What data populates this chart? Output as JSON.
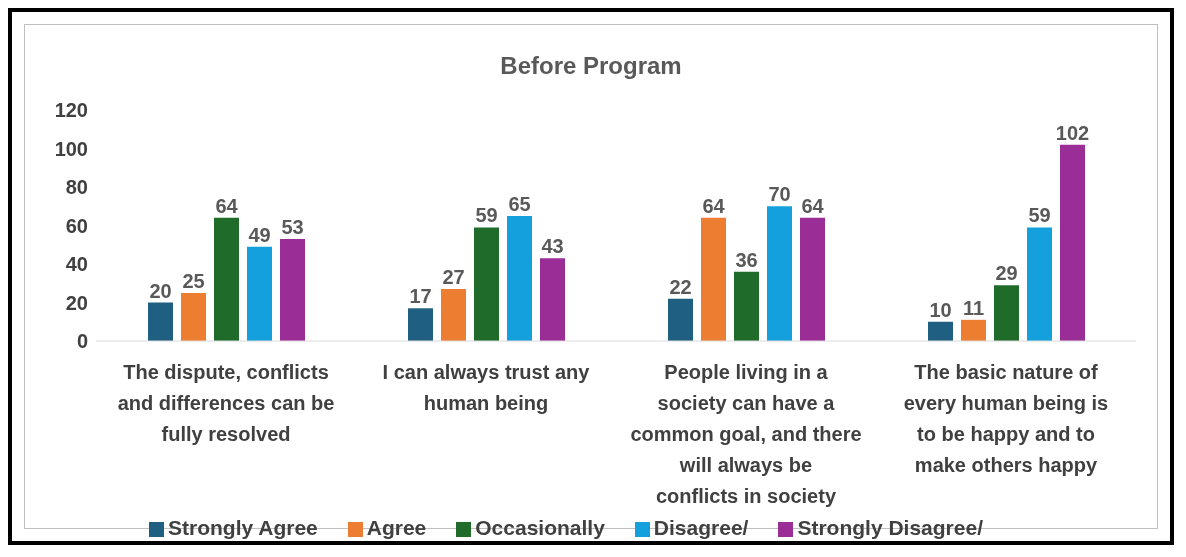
{
  "chart_data": {
    "type": "bar",
    "title": "Before Program",
    "categories": [
      "The dispute, conflicts and differences can be fully resolved",
      "I can always trust any human being",
      "People living in a society can have a common goal, and there will always be conflicts in society",
      "The basic nature of every human being is to be happy and to make others happy"
    ],
    "series": [
      {
        "name": "Strongly Agree",
        "color": "#1f5f82",
        "values": [
          20,
          17,
          22,
          10
        ]
      },
      {
        "name": "Agree",
        "color": "#ed7d31",
        "values": [
          25,
          27,
          64,
          11
        ]
      },
      {
        "name": "Occasionally",
        "color": "#1e6b2a",
        "values": [
          64,
          59,
          36,
          29
        ]
      },
      {
        "name": "Disagree/",
        "color": "#14a0dc",
        "values": [
          49,
          65,
          70,
          59
        ]
      },
      {
        "name": "Strongly Disagree/",
        "color": "#9b2d96",
        "values": [
          53,
          43,
          64,
          102
        ]
      }
    ],
    "ylim": [
      0,
      120
    ],
    "yticks": [
      0,
      20,
      40,
      60,
      80,
      100,
      120
    ],
    "data_labels": true,
    "legend": "bottom"
  }
}
